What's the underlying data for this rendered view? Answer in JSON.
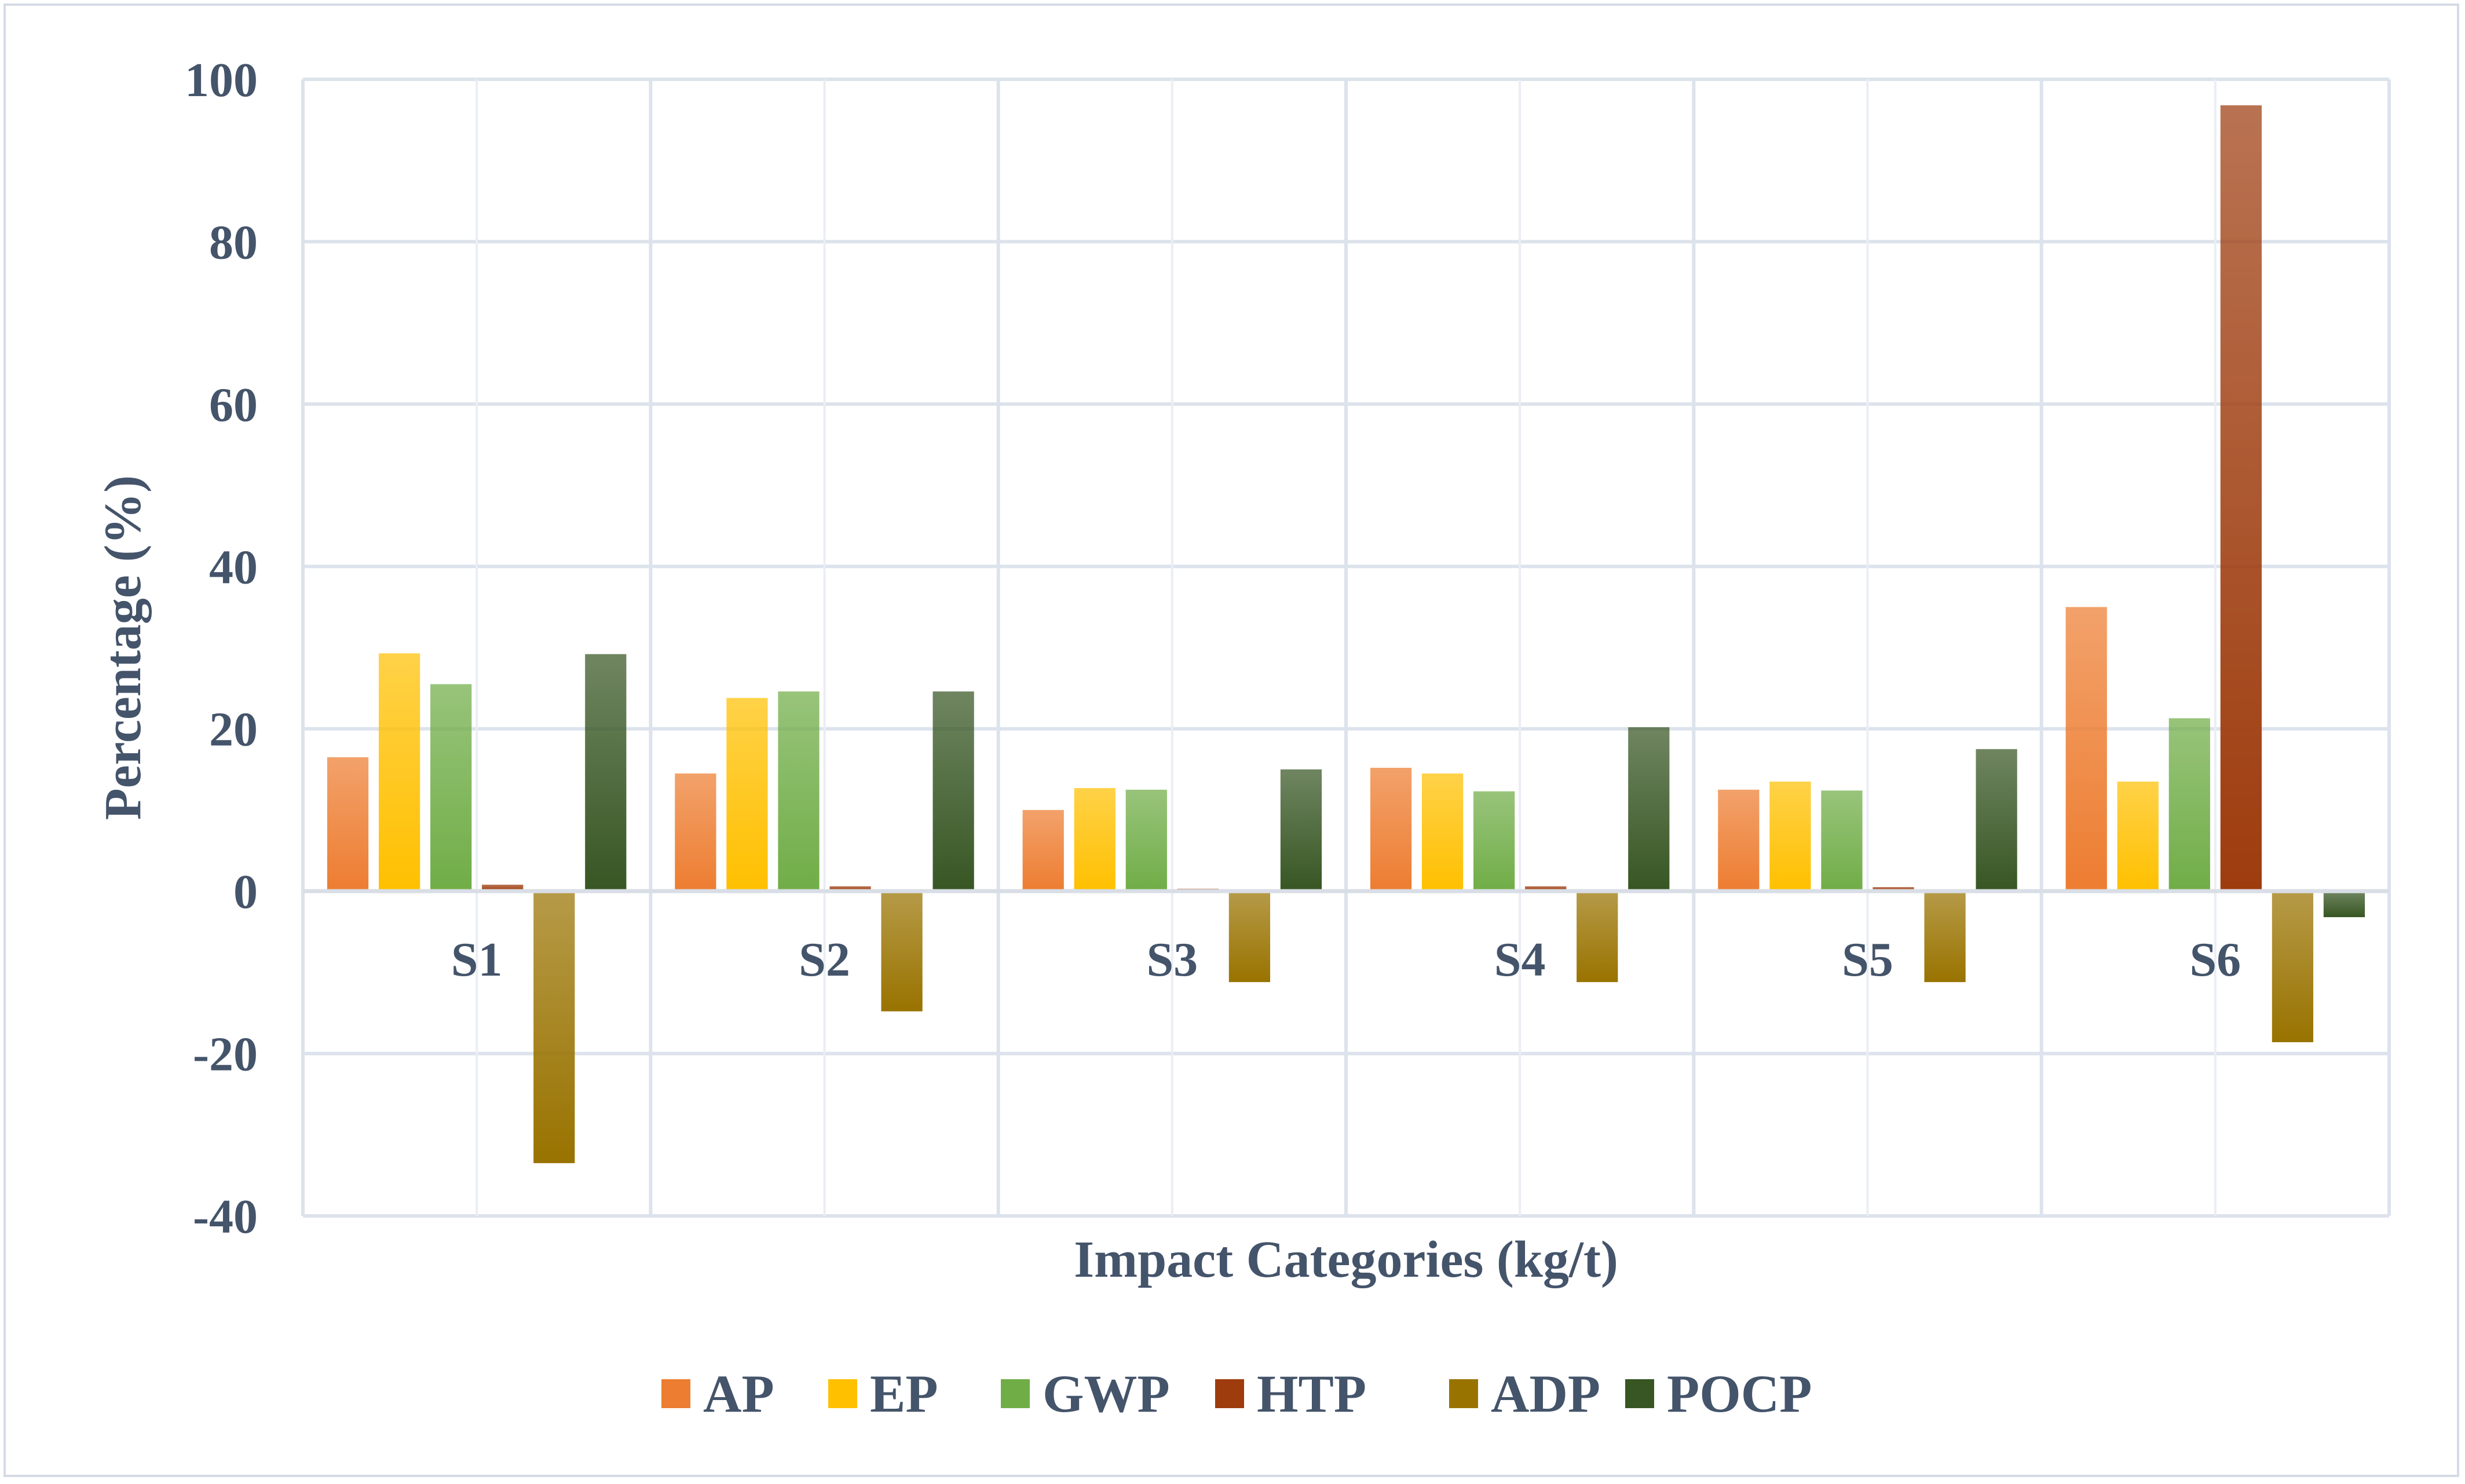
{
  "chart_data": {
    "type": "bar",
    "title": "",
    "xlabel": "Impact Categories (kg/t)",
    "ylabel": "Percentage (%)",
    "ylim": [
      -40,
      100
    ],
    "yticks": [
      100,
      80,
      60,
      40,
      20,
      0,
      -20,
      -40
    ],
    "yticks_text": [
      "100",
      "80",
      "60",
      "40",
      "20",
      "0",
      "-20",
      "-40"
    ],
    "grid": true,
    "legend_position": "bottom",
    "categories": [
      "S1",
      "S2",
      "S3",
      "S4",
      "S5",
      "S6"
    ],
    "series": [
      {
        "name": "AP",
        "color": "#ed7d31",
        "values": [
          16.5,
          14.5,
          10,
          15.2,
          12.5,
          35
        ]
      },
      {
        "name": "EP",
        "color": "#ffc000",
        "values": [
          29.3,
          23.8,
          12.7,
          14.5,
          13.5,
          13.5
        ]
      },
      {
        "name": "GWP",
        "color": "#70ad47",
        "values": [
          25.5,
          24.6,
          12.5,
          12.3,
          12.4,
          21.3
        ]
      },
      {
        "name": "HTP",
        "color": "#9e3c0e",
        "values": [
          0.8,
          0.6,
          0.3,
          0.6,
          0.5,
          96.8
        ]
      },
      {
        "name": "ADP",
        "color": "#997300",
        "values": [
          -33.5,
          -14.8,
          -11.2,
          -11.2,
          -11.2,
          -18.6
        ]
      },
      {
        "name": "POCP",
        "color": "#375623",
        "values": [
          29.2,
          24.6,
          15,
          20.2,
          17.5,
          -3.2
        ]
      }
    ]
  }
}
